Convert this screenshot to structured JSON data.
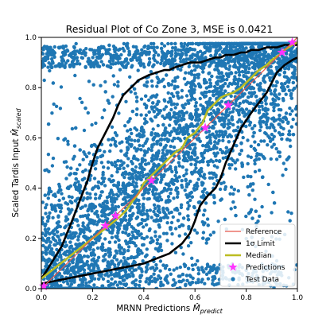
{
  "chart_data": {
    "type": "scatter",
    "title": "Residual Plot of Co Zone 3, MSE is 0.0421",
    "xlabel": "MRNN Predictions",
    "xlabel_math": "M̂",
    "xlabel_sub": "predict",
    "ylabel": "Scaled Tardis Input",
    "ylabel_math": "M̂",
    "ylabel_sub": "scaled",
    "xlim": [
      0.0,
      1.0
    ],
    "ylim": [
      0.0,
      1.0
    ],
    "xticks": [
      "0.0",
      "0.2",
      "0.4",
      "0.6",
      "0.8",
      "1.0"
    ],
    "yticks": [
      "0.0",
      "0.2",
      "0.4",
      "0.6",
      "0.8",
      "1.0"
    ],
    "grid": false,
    "legend_position": "bottom-right",
    "legend": [
      "Reference",
      "1σ Limit",
      "Median",
      "Predictions",
      "Test Data"
    ],
    "colors": {
      "reference": "#e8574b",
      "limit": "#000000",
      "median": "#bcbd22",
      "predictions": "#ff33ff",
      "test_data": "#1f77b4"
    },
    "series": [
      {
        "name": "Reference",
        "kind": "line",
        "x": [
          0.0,
          1.0
        ],
        "y": [
          0.0,
          1.0
        ]
      },
      {
        "name": "1σ Limit",
        "kind": "line",
        "x": [
          0.0,
          0.02,
          0.05,
          0.08,
          0.1,
          0.12,
          0.15,
          0.18,
          0.2,
          0.22,
          0.25,
          0.28,
          0.3,
          0.32,
          0.35,
          0.38,
          0.4,
          0.42,
          0.45,
          0.48,
          0.5,
          0.52,
          0.55,
          0.58,
          0.6,
          0.62,
          0.65,
          0.68,
          0.7,
          0.72,
          0.75,
          0.78,
          0.8,
          0.82,
          0.85,
          0.88,
          0.9,
          0.92,
          0.95,
          0.98,
          1.0
        ],
        "y": [
          0.04,
          0.07,
          0.12,
          0.17,
          0.22,
          0.27,
          0.35,
          0.43,
          0.5,
          0.56,
          0.62,
          0.68,
          0.73,
          0.77,
          0.8,
          0.83,
          0.84,
          0.85,
          0.86,
          0.87,
          0.87,
          0.88,
          0.89,
          0.9,
          0.9,
          0.9,
          0.91,
          0.92,
          0.92,
          0.93,
          0.93,
          0.94,
          0.94,
          0.95,
          0.95,
          0.96,
          0.96,
          0.96,
          0.97,
          0.97,
          0.97
        ]
      },
      {
        "name": "1σ Limit",
        "kind": "line",
        "x": [
          0.0,
          0.05,
          0.1,
          0.15,
          0.2,
          0.25,
          0.3,
          0.35,
          0.4,
          0.45,
          0.5,
          0.55,
          0.58,
          0.6,
          0.62,
          0.65,
          0.68,
          0.7,
          0.72,
          0.75,
          0.78,
          0.8,
          0.82,
          0.85,
          0.88,
          0.9,
          0.92,
          0.95,
          0.98,
          1.0
        ],
        "y": [
          0.02,
          0.03,
          0.04,
          0.05,
          0.06,
          0.07,
          0.08,
          0.09,
          0.1,
          0.12,
          0.14,
          0.18,
          0.22,
          0.27,
          0.33,
          0.37,
          0.4,
          0.44,
          0.5,
          0.57,
          0.64,
          0.67,
          0.7,
          0.74,
          0.78,
          0.82,
          0.86,
          0.89,
          0.91,
          0.92
        ]
      },
      {
        "name": "Median",
        "kind": "line",
        "x": [
          0.0,
          0.05,
          0.1,
          0.15,
          0.2,
          0.25,
          0.3,
          0.33,
          0.35,
          0.38,
          0.4,
          0.43,
          0.45,
          0.48,
          0.5,
          0.52,
          0.55,
          0.57,
          0.6,
          0.63,
          0.65,
          0.68,
          0.7,
          0.72,
          0.75,
          0.78,
          0.8,
          0.83,
          0.85,
          0.88,
          0.9,
          0.93,
          0.95,
          0.98,
          1.0
        ],
        "y": [
          0.04,
          0.08,
          0.12,
          0.16,
          0.2,
          0.24,
          0.28,
          0.31,
          0.34,
          0.38,
          0.42,
          0.45,
          0.47,
          0.5,
          0.52,
          0.54,
          0.56,
          0.6,
          0.62,
          0.66,
          0.71,
          0.74,
          0.76,
          0.77,
          0.78,
          0.8,
          0.82,
          0.85,
          0.87,
          0.89,
          0.91,
          0.93,
          0.95,
          0.97,
          0.98
        ]
      },
      {
        "name": "Predictions",
        "kind": "markers",
        "x": [
          0.01,
          0.25,
          0.29,
          0.43,
          0.64,
          0.73,
          0.94,
          0.98
        ],
        "y": [
          0.01,
          0.25,
          0.29,
          0.43,
          0.64,
          0.73,
          0.94,
          0.98
        ]
      },
      {
        "name": "Test Data",
        "kind": "scatter"
      }
    ]
  }
}
